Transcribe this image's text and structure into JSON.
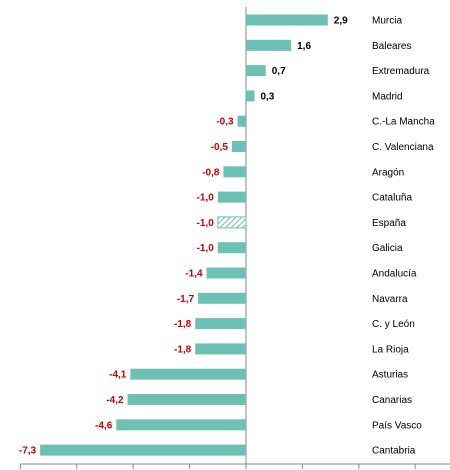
{
  "chart_data": {
    "type": "bar",
    "orientation": "horizontal",
    "categories": [
      "Murcia",
      "Baleares",
      "Extremadura",
      "Madrid",
      "C.-La Mancha",
      "C. Valenciana",
      "Aragón",
      "Cataluña",
      "España",
      "Galicia",
      "Andalucía",
      "Navarra",
      "C. y León",
      "La Rioja",
      "Asturias",
      "Canarias",
      "País Vasco",
      "Cantabria"
    ],
    "values": [
      2.9,
      1.6,
      0.7,
      0.3,
      -0.3,
      -0.5,
      -0.8,
      -1.0,
      -1.0,
      -1.0,
      -1.4,
      -1.7,
      -1.8,
      -1.8,
      -4.1,
      -4.2,
      -4.6,
      -7.3
    ],
    "value_labels": [
      "2,9",
      "1,6",
      "0,7",
      "0,3",
      "-0,3",
      "-0,5",
      "-0,8",
      "-1,0",
      "-1,0",
      "-1,0",
      "-1,4",
      "-1,7",
      "-1,8",
      "-1,8",
      "-4,1",
      "-4,2",
      "-4,6",
      "-7,3"
    ],
    "highlighted_category": "España",
    "xlim": [
      -8,
      6
    ],
    "tick_step": 2,
    "grid": false,
    "title": "",
    "xlabel": "",
    "ylabel": "",
    "colors": {
      "bar": "#6cc1b4",
      "highlight_hatch": "#6cc1b4",
      "positive_label": "#000000",
      "negative_label": "#cc0000",
      "axis": "#888888"
    }
  }
}
